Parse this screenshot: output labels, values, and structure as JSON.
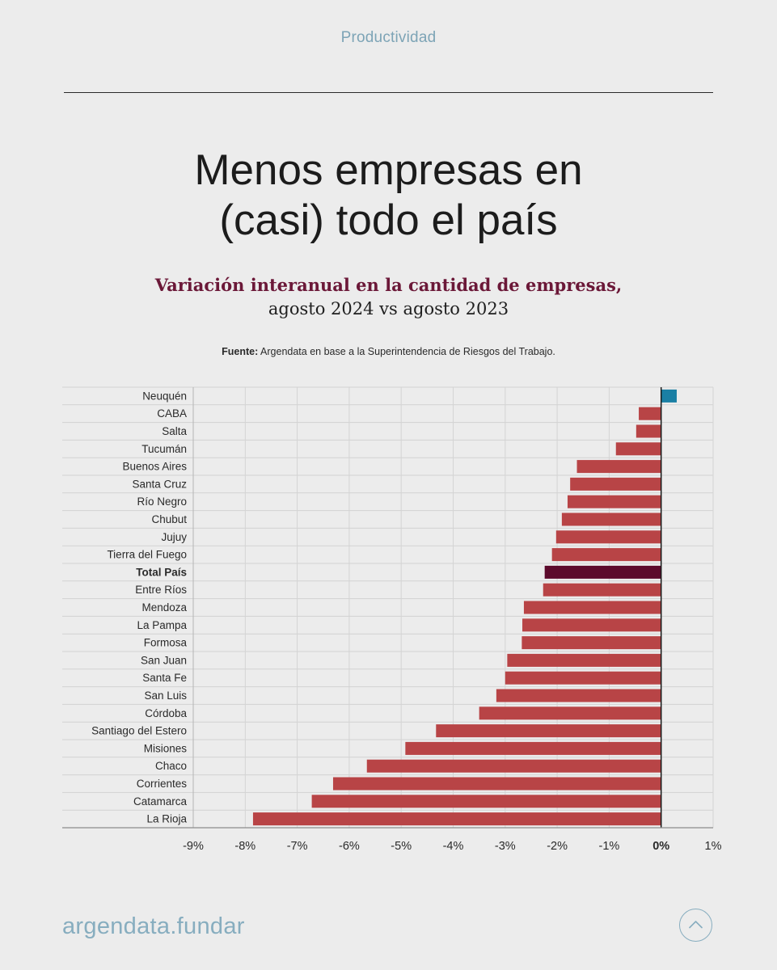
{
  "header": {
    "section": "Productividad"
  },
  "title_lines": [
    "Menos empresas en",
    "(casi) todo el país"
  ],
  "subtitle": {
    "bold": "Variación interanual en la cantidad de empresas,",
    "normal": "agosto 2024 vs agosto 2023"
  },
  "source": {
    "label": "Fuente:",
    "text": "Argendata en base a la Superintendencia de Riesgos del Trabajo."
  },
  "footer": {
    "brand": "argendata.fundar",
    "scroll_top_icon": "chevron-up-icon"
  },
  "colors": {
    "negative": "#b84446",
    "positive": "#1a7fa4",
    "total": "#5c0a2c",
    "brand": "#87adbf"
  },
  "chart_data": {
    "type": "bar",
    "orientation": "horizontal",
    "categories": [
      "Neuquén",
      "CABA",
      "Salta",
      "Tucumán",
      "Buenos Aires",
      "Santa Cruz",
      "Río Negro",
      "Chubut",
      "Jujuy",
      "Tierra del Fuego",
      "Total País",
      "Entre Ríos",
      "Mendoza",
      "La Pampa",
      "Formosa",
      "San Juan",
      "Santa Fe",
      "San Luis",
      "Córdoba",
      "Santiago del Estero",
      "Misiones",
      "Chaco",
      "Corrientes",
      "Catamarca",
      "La Rioja"
    ],
    "values": [
      0.3,
      -0.43,
      -0.48,
      -0.87,
      -1.62,
      -1.75,
      -1.8,
      -1.91,
      -2.02,
      -2.1,
      -2.24,
      -2.27,
      -2.64,
      -2.67,
      -2.68,
      -2.96,
      -3.0,
      -3.17,
      -3.5,
      -4.33,
      -4.92,
      -5.66,
      -6.31,
      -6.72,
      -7.85
    ],
    "highlight": "Total País",
    "xlim": [
      -9,
      1
    ],
    "x_ticks": [
      "-9%",
      "-8%",
      "-7%",
      "-6%",
      "-5%",
      "-4%",
      "-3%",
      "-2%",
      "-1%",
      "0%",
      "1%"
    ],
    "grid": true
  }
}
